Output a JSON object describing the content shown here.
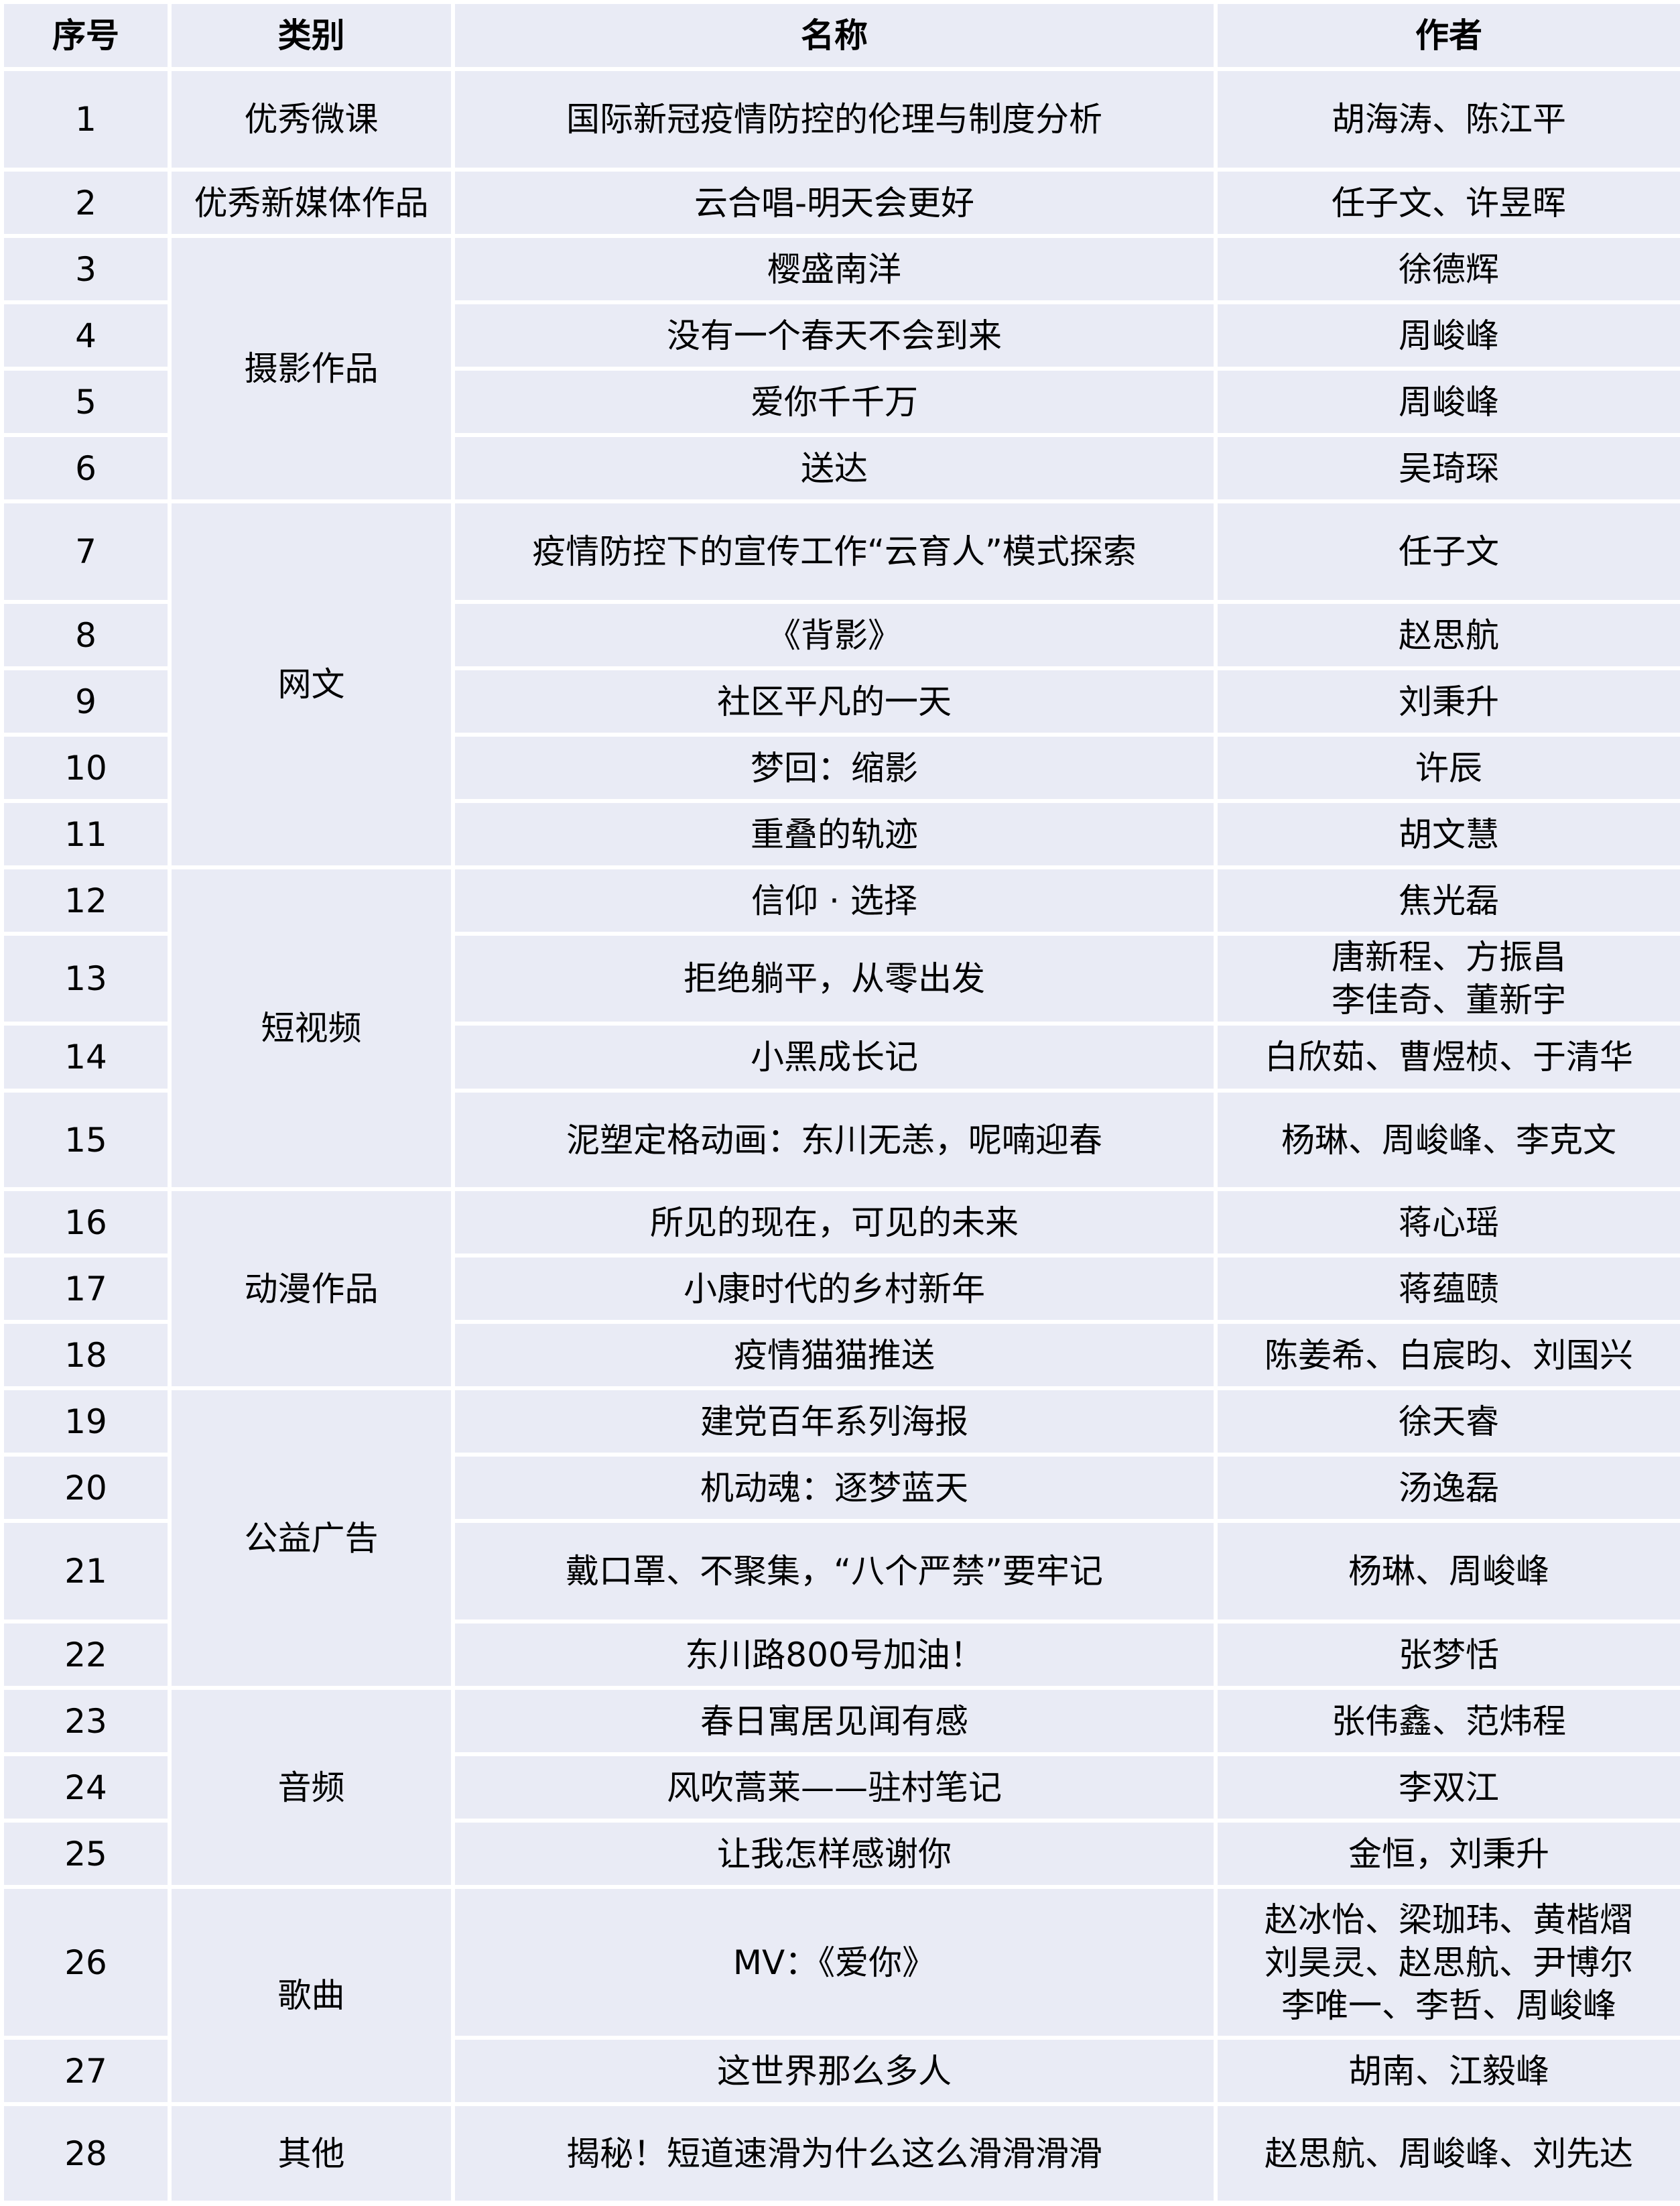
{
  "header": {
    "index": "序号",
    "category": "类别",
    "name": "名称",
    "author": "作者"
  },
  "groups": [
    {
      "category": "优秀微课",
      "rows": [
        {
          "no": "1",
          "name": "国际新冠疫情防控的伦理与制度分析",
          "author": "胡海涛、陈江平"
        }
      ]
    },
    {
      "category": "优秀新媒体作品",
      "rows": [
        {
          "no": "2",
          "name": "云合唱-明天会更好",
          "author": "任子文、许昱晖"
        }
      ]
    },
    {
      "category": "摄影作品",
      "rows": [
        {
          "no": "3",
          "name": "樱盛南洋",
          "author": "徐德辉"
        },
        {
          "no": "4",
          "name": "没有一个春天不会到来",
          "author": "周峻峰"
        },
        {
          "no": "5",
          "name": "爱你千千万",
          "author": "周峻峰"
        },
        {
          "no": "6",
          "name": "送达",
          "author": "吴琦琛"
        }
      ]
    },
    {
      "category": "网文",
      "rows": [
        {
          "no": "7",
          "name": "疫情防控下的宣传工作“云育人”模式探索",
          "author": "任子文"
        },
        {
          "no": "8",
          "name": "《背影》",
          "author": "赵思航"
        },
        {
          "no": "9",
          "name": "社区平凡的一天",
          "author": "刘秉升"
        },
        {
          "no": "10",
          "name": "梦回：缩影",
          "author": "许辰"
        },
        {
          "no": "11",
          "name": "重叠的轨迹",
          "author": "胡文慧"
        }
      ]
    },
    {
      "category": "短视频",
      "rows": [
        {
          "no": "12",
          "name": "信仰 · 选择",
          "author": "焦光磊"
        },
        {
          "no": "13",
          "name": "拒绝躺平，从零出发",
          "author": "唐新程、方振昌\n李佳奇、董新宇"
        },
        {
          "no": "14",
          "name": "小黑成长记",
          "author": "白欣茹、曹煜桢、于清华"
        },
        {
          "no": "15",
          "name": "泥塑定格动画：东川无恙，呢喃迎春",
          "author": "杨琳、周峻峰、李克文"
        }
      ]
    },
    {
      "category": "动漫作品",
      "rows": [
        {
          "no": "16",
          "name": "所见的现在，可见的未来",
          "author": "蒋心瑶"
        },
        {
          "no": "17",
          "name": "小康时代的乡村新年",
          "author": "蒋蕴赜"
        },
        {
          "no": "18",
          "name": "疫情猫猫推送",
          "author": "陈姜希、白宸昀、刘国兴"
        }
      ]
    },
    {
      "category": "公益广告",
      "rows": [
        {
          "no": "19",
          "name": "建党百年系列海报",
          "author": "徐天睿"
        },
        {
          "no": "20",
          "name": "机动魂：逐梦蓝天",
          "author": "汤逸磊"
        },
        {
          "no": "21",
          "name": "戴口罩、不聚集，“八个严禁”要牢记",
          "author": "杨琳、周峻峰"
        },
        {
          "no": "22",
          "name": "东川路800号加油！",
          "author": "张梦恬"
        }
      ]
    },
    {
      "category": "音频",
      "rows": [
        {
          "no": "23",
          "name": "春日寓居见闻有感",
          "author": "张伟鑫、范炜程"
        },
        {
          "no": "24",
          "name": "风吹蒿莱——驻村笔记",
          "author": "李双江"
        },
        {
          "no": "25",
          "name": "让我怎样感谢你",
          "author": "金恒，刘秉升"
        }
      ]
    },
    {
      "category": "歌曲",
      "rows": [
        {
          "no": "26",
          "name": "MV：《爱你》",
          "author": "赵冰怡、梁珈玮、黄楷熠\n刘昊灵、赵思航、尹博尔\n李唯一、李哲、周峻峰"
        },
        {
          "no": "27",
          "name": "这世界那么多人",
          "author": "胡南、江毅峰"
        }
      ]
    },
    {
      "category": "其他",
      "rows": [
        {
          "no": "28",
          "name": "揭秘！短道速滑为什么这么滑滑滑滑",
          "author": "赵思航、周峻峰、刘先达"
        }
      ]
    }
  ],
  "colors": {
    "cell_background": "#e9ebf5",
    "grid_lines": "#ffffff"
  }
}
